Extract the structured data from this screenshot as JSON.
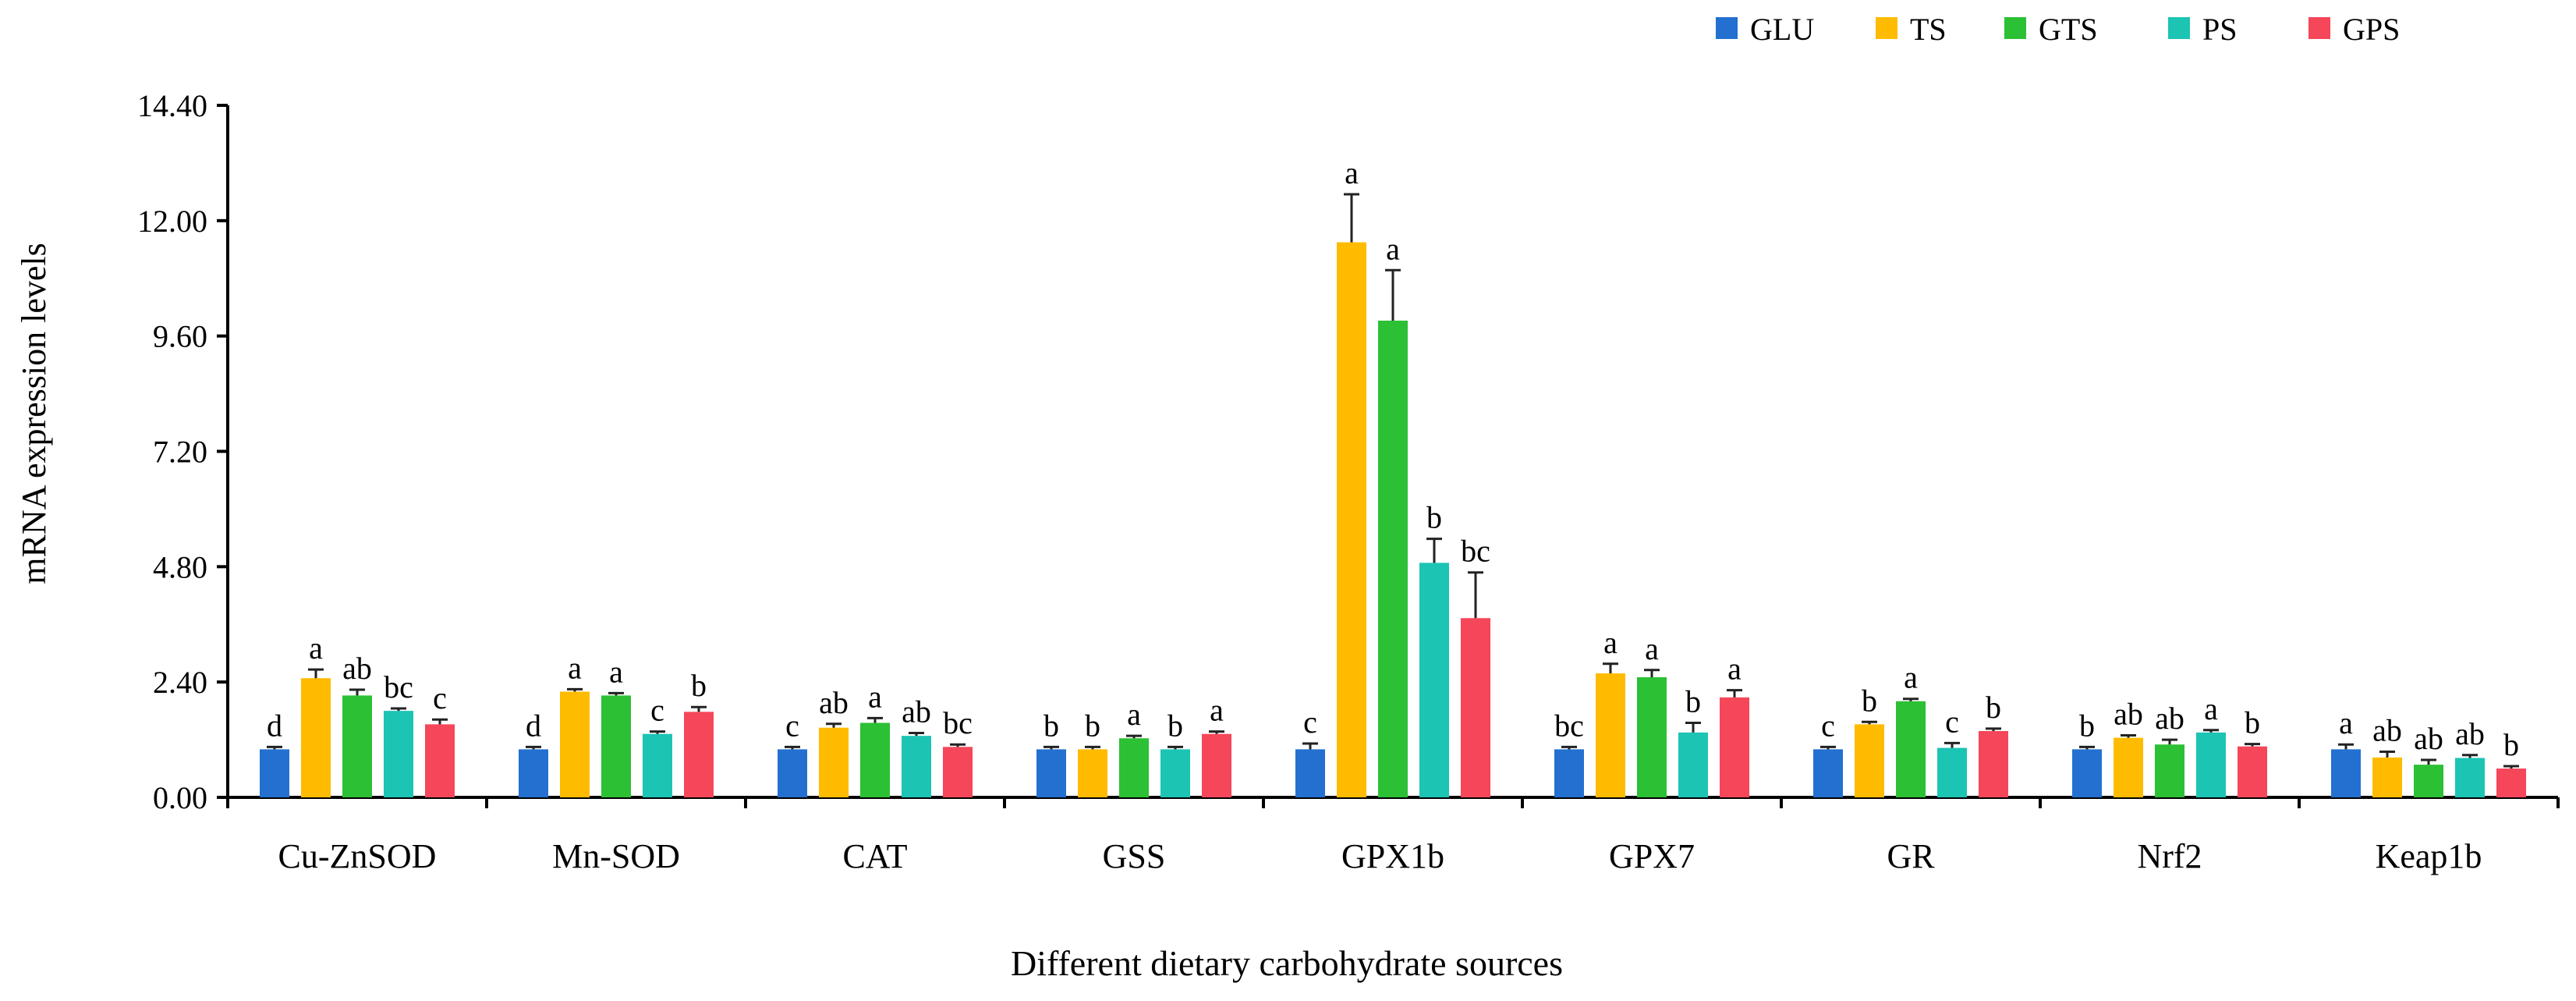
{
  "chart_data": {
    "type": "bar",
    "title": "",
    "xlabel": "Different dietary carbohydrate sources",
    "ylabel": "mRNA expression levels",
    "ylim": [
      0,
      14.4
    ],
    "yticks": [
      "0.00",
      "2.40",
      "4.80",
      "7.20",
      "9.60",
      "12.00",
      "14.40"
    ],
    "legend_position": "top-right",
    "grid": false,
    "categories": [
      "Cu-ZnSOD",
      "Mn-SOD",
      "CAT",
      "GSS",
      "GPX1b",
      "GPX7",
      "GR",
      "Nrf2",
      "Keap1b"
    ],
    "series": [
      {
        "name": "GLU",
        "color": "#2370d0",
        "values": [
          1.0,
          1.0,
          1.0,
          1.0,
          1.0,
          1.0,
          1.0,
          1.0,
          1.0
        ],
        "errors": [
          0.05,
          0.05,
          0.05,
          0.05,
          0.12,
          0.05,
          0.05,
          0.05,
          0.1
        ],
        "letters": [
          "d",
          "d",
          "c",
          "b",
          "c",
          "bc",
          "c",
          "b",
          "a"
        ]
      },
      {
        "name": "TS",
        "color": "#ffbb00",
        "values": [
          2.48,
          2.2,
          1.45,
          1.0,
          11.55,
          2.58,
          1.52,
          1.24,
          0.83
        ],
        "errors": [
          0.18,
          0.05,
          0.08,
          0.05,
          1.0,
          0.2,
          0.05,
          0.05,
          0.12
        ],
        "letters": [
          "a",
          "a",
          "ab",
          "b",
          "a",
          "a",
          "b",
          "ab",
          "ab"
        ]
      },
      {
        "name": "GTS",
        "color": "#2cc034",
        "values": [
          2.12,
          2.12,
          1.55,
          1.23,
          9.92,
          2.5,
          2.0,
          1.1,
          0.68
        ],
        "errors": [
          0.12,
          0.05,
          0.1,
          0.05,
          1.05,
          0.15,
          0.05,
          0.1,
          0.1
        ],
        "letters": [
          "ab",
          "a",
          "a",
          "a",
          "a",
          "a",
          "a",
          "ab",
          "ab"
        ]
      },
      {
        "name": "PS",
        "color": "#1cc4b4",
        "values": [
          1.8,
          1.32,
          1.28,
          1.0,
          4.88,
          1.35,
          1.03,
          1.35,
          0.82
        ],
        "errors": [
          0.05,
          0.05,
          0.06,
          0.05,
          0.5,
          0.2,
          0.1,
          0.05,
          0.06
        ],
        "letters": [
          "bc",
          "c",
          "ab",
          "b",
          "b",
          "b",
          "c",
          "a",
          "ab"
        ]
      },
      {
        "name": "GPS",
        "color": "#f5465a",
        "values": [
          1.52,
          1.78,
          1.05,
          1.32,
          3.73,
          2.08,
          1.38,
          1.06,
          0.6
        ],
        "errors": [
          0.1,
          0.1,
          0.05,
          0.05,
          0.95,
          0.15,
          0.05,
          0.05,
          0.05
        ],
        "letters": [
          "c",
          "b",
          "bc",
          "a",
          "bc",
          "a",
          "b",
          "b",
          "b"
        ]
      }
    ]
  }
}
